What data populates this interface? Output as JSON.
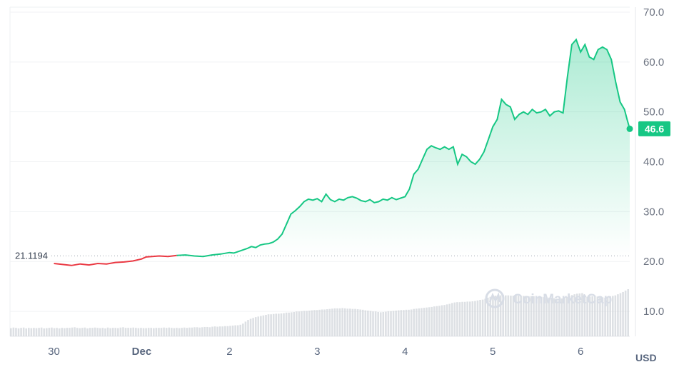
{
  "chart_data": {
    "type": "line",
    "ylim": [
      5,
      71
    ],
    "yticks": [
      "70.0",
      "60.0",
      "50.0",
      "40.0",
      "30.0",
      "20.0",
      "10.0"
    ],
    "ytick_values": [
      70,
      60,
      50,
      40,
      30,
      20,
      10
    ],
    "xlim": [
      0,
      7.06
    ],
    "xticks": [
      {
        "label": "30",
        "x": 0.5,
        "bold": false
      },
      {
        "label": "Dec",
        "x": 1.5,
        "bold": true
      },
      {
        "label": "2",
        "x": 2.5,
        "bold": false
      },
      {
        "label": "3",
        "x": 3.5,
        "bold": false
      },
      {
        "label": "4",
        "x": 4.5,
        "bold": false
      },
      {
        "label": "5",
        "x": 5.5,
        "bold": false
      },
      {
        "label": "6",
        "x": 6.5,
        "bold": false
      }
    ],
    "reference": {
      "label": "21.1194",
      "value": 21.1194
    },
    "current": {
      "label": "46.6",
      "value": 46.6
    },
    "currency_label": "USD",
    "watermark": "CoinMarketCap",
    "colors": {
      "up": "#16c784",
      "down": "#ea3943",
      "badge": "#16c784",
      "volume": "#d1d5db"
    },
    "series": [
      {
        "x": [
          0.5,
          0.6,
          0.7,
          0.8,
          0.9,
          1.0,
          1.1,
          1.2,
          1.3,
          1.4,
          1.5,
          1.55,
          1.7,
          1.8,
          1.9,
          2.0,
          2.1,
          2.2,
          2.3,
          2.4,
          2.5,
          2.55,
          2.6,
          2.7,
          2.75,
          2.8,
          2.85,
          2.9,
          2.95,
          3.0,
          3.05,
          3.1,
          3.15,
          3.2,
          3.25,
          3.3,
          3.35,
          3.4,
          3.45,
          3.5,
          3.55,
          3.6,
          3.65,
          3.7,
          3.75,
          3.8,
          3.85,
          3.9,
          3.95,
          4.0,
          4.05,
          4.1,
          4.15,
          4.2,
          4.25,
          4.3,
          4.35,
          4.4,
          4.45,
          4.5,
          4.55,
          4.6,
          4.65,
          4.7,
          4.75,
          4.8,
          4.85,
          4.9,
          4.95,
          5.0,
          5.05,
          5.1,
          5.15,
          5.2,
          5.25,
          5.3,
          5.35,
          5.4,
          5.45,
          5.5,
          5.55,
          5.6,
          5.65,
          5.7,
          5.75,
          5.8,
          5.85,
          5.9,
          5.95,
          6.0,
          6.05,
          6.1,
          6.15,
          6.2,
          6.25,
          6.3,
          6.35,
          6.4,
          6.45,
          6.5,
          6.55,
          6.6,
          6.65,
          6.7,
          6.75,
          6.8,
          6.85,
          6.9,
          6.95,
          7.0,
          7.03,
          7.06
        ],
        "y": [
          19.6,
          19.4,
          19.2,
          19.5,
          19.3,
          19.6,
          19.5,
          19.8,
          19.9,
          20.1,
          20.5,
          20.9,
          21.1,
          21.0,
          21.2,
          21.3,
          21.1,
          21.0,
          21.3,
          21.5,
          21.8,
          21.7,
          22.0,
          22.6,
          23.0,
          22.8,
          23.3,
          23.5,
          23.6,
          23.9,
          24.5,
          25.5,
          27.5,
          29.5,
          30.2,
          31.0,
          32.0,
          32.5,
          32.3,
          32.6,
          32.0,
          33.5,
          32.4,
          32.0,
          32.5,
          32.3,
          32.8,
          33.0,
          32.7,
          32.2,
          32.0,
          32.4,
          31.8,
          32.0,
          32.5,
          32.3,
          32.8,
          32.4,
          32.7,
          33.0,
          34.5,
          37.5,
          38.5,
          40.5,
          42.5,
          43.2,
          42.8,
          42.5,
          43.0,
          42.5,
          43.0,
          39.5,
          41.5,
          41.0,
          40.0,
          39.5,
          40.5,
          42.0,
          44.5,
          47.0,
          48.5,
          52.5,
          51.5,
          51.0,
          48.5,
          49.5,
          50.0,
          49.5,
          50.5,
          49.8,
          50.0,
          50.5,
          49.2,
          50.0,
          50.2,
          49.8,
          57.0,
          63.5,
          64.5,
          62.0,
          63.5,
          61.0,
          60.5,
          62.5,
          63.0,
          62.5,
          60.5,
          56.0,
          52.0,
          50.5,
          48.5,
          46.6
        ]
      }
    ],
    "volume": [
      0.29,
      0.31,
      0.3,
      0.28,
      0.3,
      0.31,
      0.28,
      0.3,
      0.29,
      0.3,
      0.29,
      0.3,
      0.31,
      0.28,
      0.29,
      0.3,
      0.31,
      0.29,
      0.3,
      0.28,
      0.3,
      0.29,
      0.3,
      0.3,
      0.31,
      0.32,
      0.3,
      0.29,
      0.3,
      0.31,
      0.28,
      0.3,
      0.3,
      0.31,
      0.3,
      0.29,
      0.3,
      0.28,
      0.31,
      0.29,
      0.3,
      0.3,
      0.29,
      0.31,
      0.32,
      0.3,
      0.3,
      0.3,
      0.31,
      0.3,
      0.29,
      0.3,
      0.29,
      0.29,
      0.3,
      0.3,
      0.29,
      0.3,
      0.3,
      0.3,
      0.31,
      0.3,
      0.31,
      0.3,
      0.29,
      0.3,
      0.29,
      0.3,
      0.31,
      0.3,
      0.31,
      0.31,
      0.32,
      0.32,
      0.31,
      0.32,
      0.33,
      0.33,
      0.32,
      0.34,
      0.35,
      0.34,
      0.35,
      0.35,
      0.36,
      0.36,
      0.37,
      0.38,
      0.39,
      0.39,
      0.41,
      0.45,
      0.52,
      0.58,
      0.62,
      0.65,
      0.68,
      0.7,
      0.72,
      0.74,
      0.76,
      0.78,
      0.78,
      0.79,
      0.8,
      0.8,
      0.81,
      0.82,
      0.84,
      0.84,
      0.85,
      0.86,
      0.88,
      0.88,
      0.89,
      0.9,
      0.9,
      0.91,
      0.92,
      0.93,
      0.93,
      0.94,
      0.95,
      0.95,
      0.96,
      0.97,
      0.98,
      0.99,
      0.99,
      0.99,
      1.0,
      0.99,
      0.98,
      0.98,
      0.97,
      0.97,
      0.96,
      0.95,
      0.94,
      0.92,
      0.91,
      0.9,
      0.88,
      0.88,
      0.86,
      0.85,
      0.86,
      0.87,
      0.89,
      0.89,
      0.9,
      0.91,
      0.92,
      0.93,
      0.93,
      0.94,
      0.94,
      0.95,
      0.97,
      0.98,
      0.99,
      1.0,
      1.01,
      1.02,
      1.03,
      1.04,
      1.06,
      1.07,
      1.08,
      1.1,
      1.11,
      1.13,
      1.15,
      1.18,
      1.2,
      1.21,
      1.21,
      1.22,
      1.22,
      1.23,
      1.23,
      1.24,
      1.25,
      1.27,
      1.29,
      1.3,
      1.33,
      1.37,
      1.4,
      1.42,
      1.44,
      1.45,
      1.45,
      1.46,
      1.45,
      1.45,
      1.44,
      1.44,
      1.45,
      1.44,
      1.43,
      1.43,
      1.43,
      1.42,
      1.42,
      1.42,
      1.41,
      1.4,
      1.4,
      1.39,
      1.38,
      1.37,
      1.36,
      1.35,
      1.33,
      1.3,
      1.34,
      1.38,
      1.4,
      1.43,
      1.46,
      1.49,
      1.51,
      1.52,
      1.53,
      1.47,
      1.4,
      1.41,
      1.42,
      1.43,
      1.41,
      1.4,
      1.38,
      1.37,
      1.4,
      1.42,
      1.43,
      1.45,
      1.49,
      1.53,
      1.57,
      1.62,
      1.67
    ]
  }
}
